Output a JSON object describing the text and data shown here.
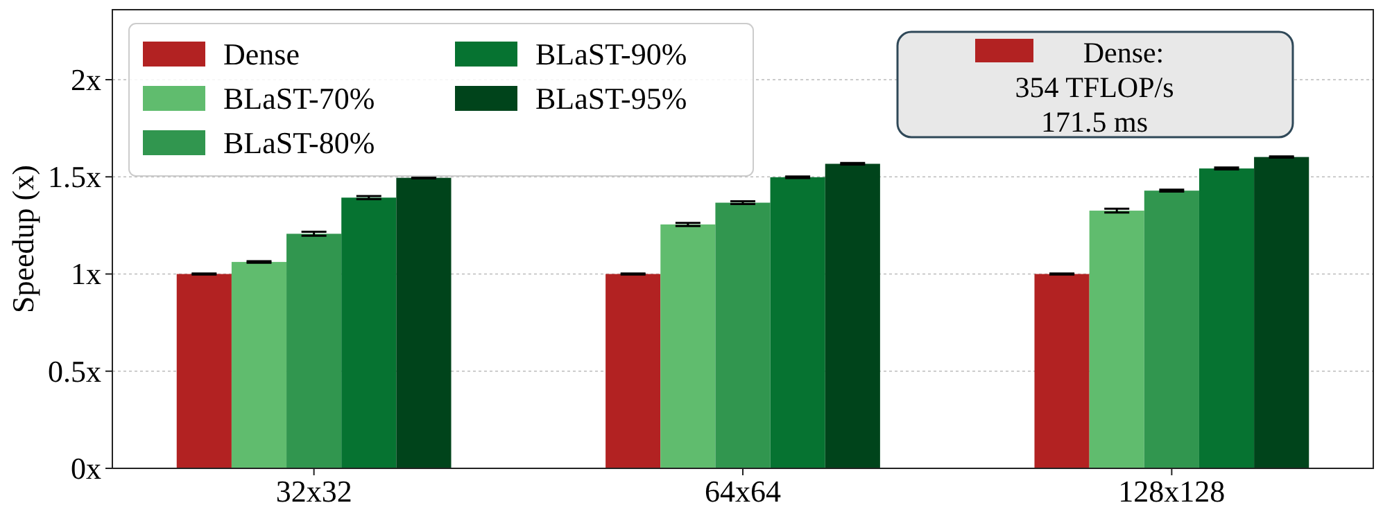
{
  "chart_data": {
    "type": "bar",
    "ylabel": "Speedup (x)",
    "categories": [
      "32x32",
      "64x64",
      "128x128"
    ],
    "series": [
      {
        "name": "Dense",
        "color": "#b22222",
        "values": [
          1,
          1,
          1
        ],
        "errors": [
          0.003,
          0.003,
          0.003
        ]
      },
      {
        "name": "BLaST-70%",
        "color": "#60bc6e",
        "values": [
          1.062,
          1.255,
          1.326
        ],
        "errors": [
          0.004,
          0.008,
          0.01
        ]
      },
      {
        "name": "BLaST-80%",
        "color": "#31964f",
        "values": [
          1.207,
          1.367,
          1.429
        ],
        "errors": [
          0.01,
          0.007,
          0.005
        ]
      },
      {
        "name": "BLaST-90%",
        "color": "#067331",
        "values": [
          1.393,
          1.498,
          1.543
        ],
        "errors": [
          0.008,
          0.004,
          0.005
        ]
      },
      {
        "name": "BLaST-95%",
        "color": "#00441b",
        "values": [
          1.495,
          1.567,
          1.602
        ],
        "errors": [
          0.003,
          0.004,
          0.003
        ]
      }
    ],
    "ylim": [
      0,
      2.36
    ],
    "yticks": [
      {
        "value": 0,
        "label": "0x"
      },
      {
        "value": 0.5,
        "label": "0.5x"
      },
      {
        "value": 1,
        "label": "1x"
      },
      {
        "value": 1.5,
        "label": "1.5x"
      },
      {
        "value": 2,
        "label": "2x"
      }
    ],
    "grid": "y",
    "legend": "top left",
    "annotations": [
      "Dense:\n354 TFLOP/s\n171.5 ms"
    ]
  }
}
